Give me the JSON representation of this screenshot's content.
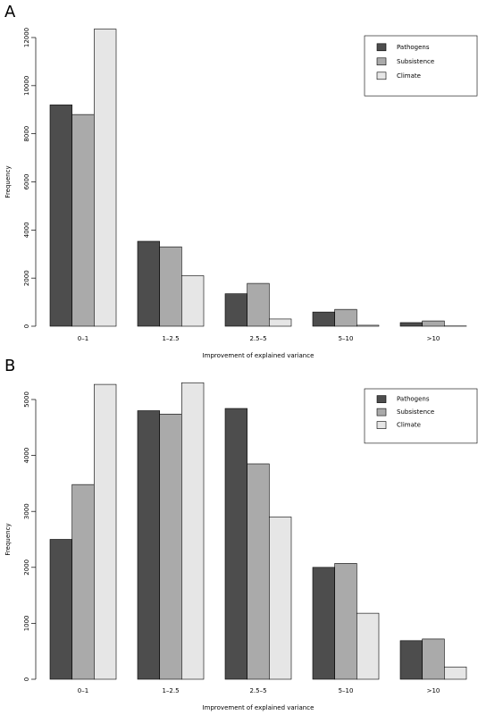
{
  "chart_data": [
    {
      "type": "bar",
      "panel_label": "A",
      "x_label": "Improvement of explained variance",
      "y_label": "Frequency",
      "categories": [
        "0–1",
        "1–2.5",
        "2.5–5",
        "5–10",
        ">10"
      ],
      "series": [
        {
          "name": "Pathogens",
          "color": "#4d4d4d",
          "values": [
            9200,
            3530,
            1350,
            590,
            150
          ]
        },
        {
          "name": "Subsistence",
          "color": "#aaaaaa",
          "values": [
            8800,
            3300,
            1780,
            700,
            220
          ]
        },
        {
          "name": "Climate",
          "color": "#e6e6e6",
          "values": [
            12350,
            2100,
            300,
            40,
            10
          ]
        }
      ],
      "ylim": [
        0,
        12000
      ],
      "yticks": [
        0,
        2000,
        4000,
        6000,
        8000,
        10000,
        12000
      ],
      "legend": "topright"
    },
    {
      "type": "bar",
      "panel_label": "B",
      "x_label": "Improvement of explained variance",
      "y_label": "Frequency",
      "categories": [
        "0–1",
        "1–2.5",
        "2.5–5",
        "5–10",
        ">10"
      ],
      "series": [
        {
          "name": "Pathogens",
          "color": "#4d4d4d",
          "values": [
            2500,
            4800,
            4840,
            2000,
            690
          ]
        },
        {
          "name": "Subsistence",
          "color": "#aaaaaa",
          "values": [
            3480,
            4740,
            3850,
            2070,
            720
          ]
        },
        {
          "name": "Climate",
          "color": "#e6e6e6",
          "values": [
            5270,
            5300,
            2900,
            1180,
            220
          ]
        }
      ],
      "ylim": [
        0,
        5000
      ],
      "yticks": [
        0,
        1000,
        2000,
        3000,
        4000,
        5000
      ],
      "legend": "topright"
    }
  ]
}
